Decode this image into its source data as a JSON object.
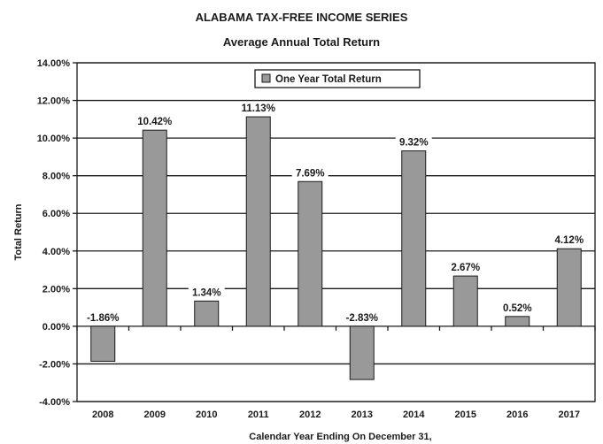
{
  "chart_data": {
    "type": "bar",
    "title": "ALABAMA TAX-FREE INCOME SERIES",
    "subtitle": "Average Annual Total Return",
    "categories": [
      "2008",
      "2009",
      "2010",
      "2011",
      "2012",
      "2013",
      "2014",
      "2015",
      "2016",
      "2017"
    ],
    "series": [
      {
        "name": "One Year Total Return",
        "values": [
          -1.86,
          10.42,
          1.34,
          11.13,
          7.69,
          -2.83,
          9.32,
          2.67,
          0.52,
          4.12
        ],
        "data_labels": [
          "-1.86%",
          "10.42%",
          "1.34%",
          "11.13%",
          "7.69%",
          "-2.83%",
          "9.32%",
          "2.67%",
          "0.52%",
          "4.12%"
        ]
      }
    ],
    "xlabel": "Calendar Year Ending On December 31,",
    "ylabel": "Total Return",
    "ylim": [
      -4,
      14
    ],
    "yticks": [
      -4,
      -2,
      0,
      2,
      4,
      6,
      8,
      10,
      12,
      14
    ],
    "ytick_labels": [
      "-4.00%",
      "-2.00%",
      "0.00%",
      "2.00%",
      "4.00%",
      "6.00%",
      "8.00%",
      "10.00%",
      "12.00%",
      "14.00%"
    ],
    "grid": true,
    "legend_position": "top-center",
    "colors": {
      "bar": "#999999",
      "bar_stroke": "#1a1a1a",
      "grid": "#1a1a1a"
    }
  }
}
